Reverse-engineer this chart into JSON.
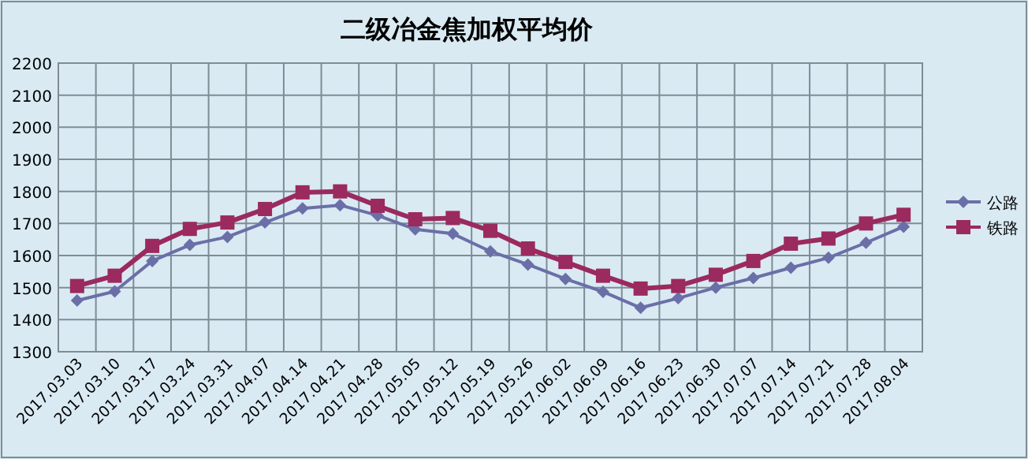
{
  "chart_data": {
    "type": "line",
    "title": "二级冶金焦加权平均价",
    "categories": [
      "2017.03.03",
      "2017.03.10",
      "2017.03.17",
      "2017.03.24",
      "2017.03.31",
      "2017.04.07",
      "2017.04.14",
      "2017.04.21",
      "2017.04.28",
      "2017.05.05",
      "2017.05.12",
      "2017.05.19",
      "2017.05.26",
      "2017.06.02",
      "2017.06.09",
      "2017.06.16",
      "2017.06.23",
      "2017.06.30",
      "2017.07.07",
      "2017.07.14",
      "2017.07.21",
      "2017.07.28",
      "2017.08.04"
    ],
    "series": [
      {
        "name": "公路",
        "color": "#6b6fa8",
        "marker": "diamond",
        "values": [
          1460,
          1488,
          1583,
          1633,
          1658,
          1703,
          1747,
          1757,
          1725,
          1682,
          1668,
          1613,
          1572,
          1527,
          1487,
          1437,
          1467,
          1500,
          1530,
          1562,
          1593,
          1640,
          1690
        ]
      },
      {
        "name": "铁路",
        "color": "#9b2a5e",
        "marker": "square",
        "values": [
          1505,
          1537,
          1630,
          1683,
          1703,
          1745,
          1797,
          1800,
          1755,
          1713,
          1717,
          1677,
          1622,
          1580,
          1537,
          1497,
          1505,
          1540,
          1583,
          1637,
          1653,
          1700,
          1727
        ]
      }
    ],
    "ylim": [
      1300,
      2200
    ],
    "yticks": [
      1300,
      1400,
      1500,
      1600,
      1700,
      1800,
      1900,
      2000,
      2100,
      2200
    ],
    "grid": true,
    "legend": "right"
  }
}
